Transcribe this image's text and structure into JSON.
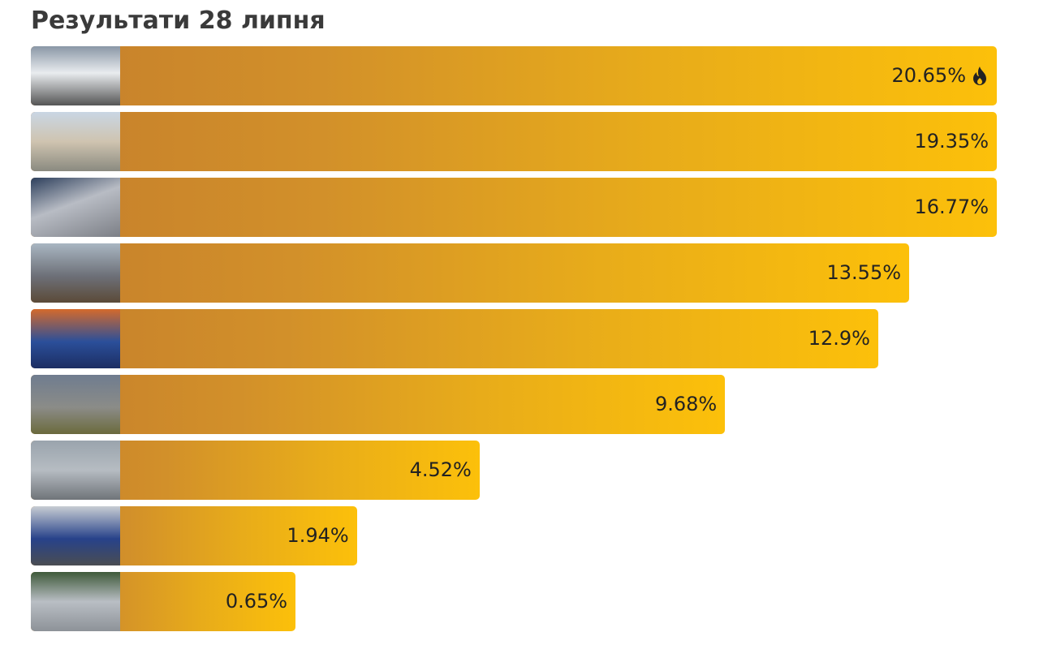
{
  "title": "Результати 28 липня",
  "results": [
    {
      "value": 20.65,
      "label": "20.65%"
    },
    {
      "value": 19.35,
      "label": "19.35%"
    },
    {
      "value": 16.77,
      "label": "16.77%"
    },
    {
      "value": 13.55,
      "label": "13.55%"
    },
    {
      "value": 12.9,
      "label": "12.9%"
    },
    {
      "value": 9.68,
      "label": "9.68%"
    },
    {
      "value": 4.52,
      "label": "4.52%"
    },
    {
      "value": 1.94,
      "label": "1.94%"
    },
    {
      "value": 0.65,
      "label": "0.65%"
    }
  ]
}
